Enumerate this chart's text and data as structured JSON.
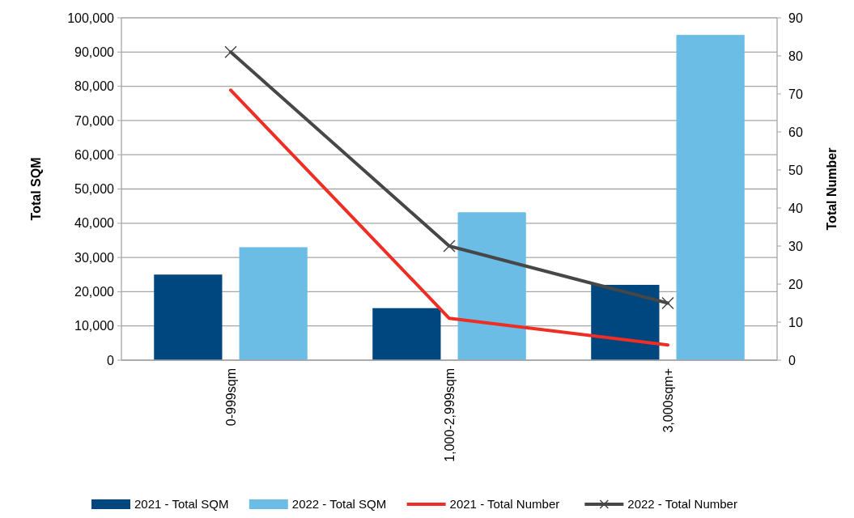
{
  "chart_data": {
    "type": "bar",
    "categories": [
      "0-999sqm",
      "1,000-2,999sqm",
      "3,000sqm+"
    ],
    "ylabel": "Total SQM",
    "y2label": "Total Number",
    "series": [
      {
        "name": "2021 - Total SQM",
        "color": "#00467f",
        "values": [
          25000,
          15200,
          22000
        ]
      },
      {
        "name": "2022 - Total SQM",
        "color": "#6bbde6",
        "values": [
          33000,
          43200,
          95000
        ]
      },
      {
        "name": "2021 - Total Number",
        "type": "line",
        "axis": "y2",
        "color": "#ee2e24",
        "marker": "none",
        "values": [
          71,
          11,
          4
        ]
      },
      {
        "name": "2022 - Total Number",
        "type": "line",
        "axis": "y2",
        "color": "#474747",
        "marker": "cross",
        "values": [
          81,
          30,
          15
        ]
      }
    ],
    "ylim": [
      0,
      100000
    ],
    "yticks": [
      {
        "value": 0,
        "label": "0"
      },
      {
        "value": 10000,
        "label": "10,000"
      },
      {
        "value": 20000,
        "label": "20,000"
      },
      {
        "value": 30000,
        "label": "30,000"
      },
      {
        "value": 40000,
        "label": "40,000"
      },
      {
        "value": 50000,
        "label": "50,000"
      },
      {
        "value": 60000,
        "label": "60,000"
      },
      {
        "value": 70000,
        "label": "70,000"
      },
      {
        "value": 80000,
        "label": "80,000"
      },
      {
        "value": 90000,
        "label": "90,000"
      },
      {
        "value": 100000,
        "label": "100,000"
      }
    ],
    "y2lim": [
      0,
      90
    ],
    "y2ticks": [
      0,
      10,
      20,
      30,
      40,
      50,
      60,
      70,
      80,
      90
    ],
    "grid": "y",
    "legend": "bottom"
  }
}
